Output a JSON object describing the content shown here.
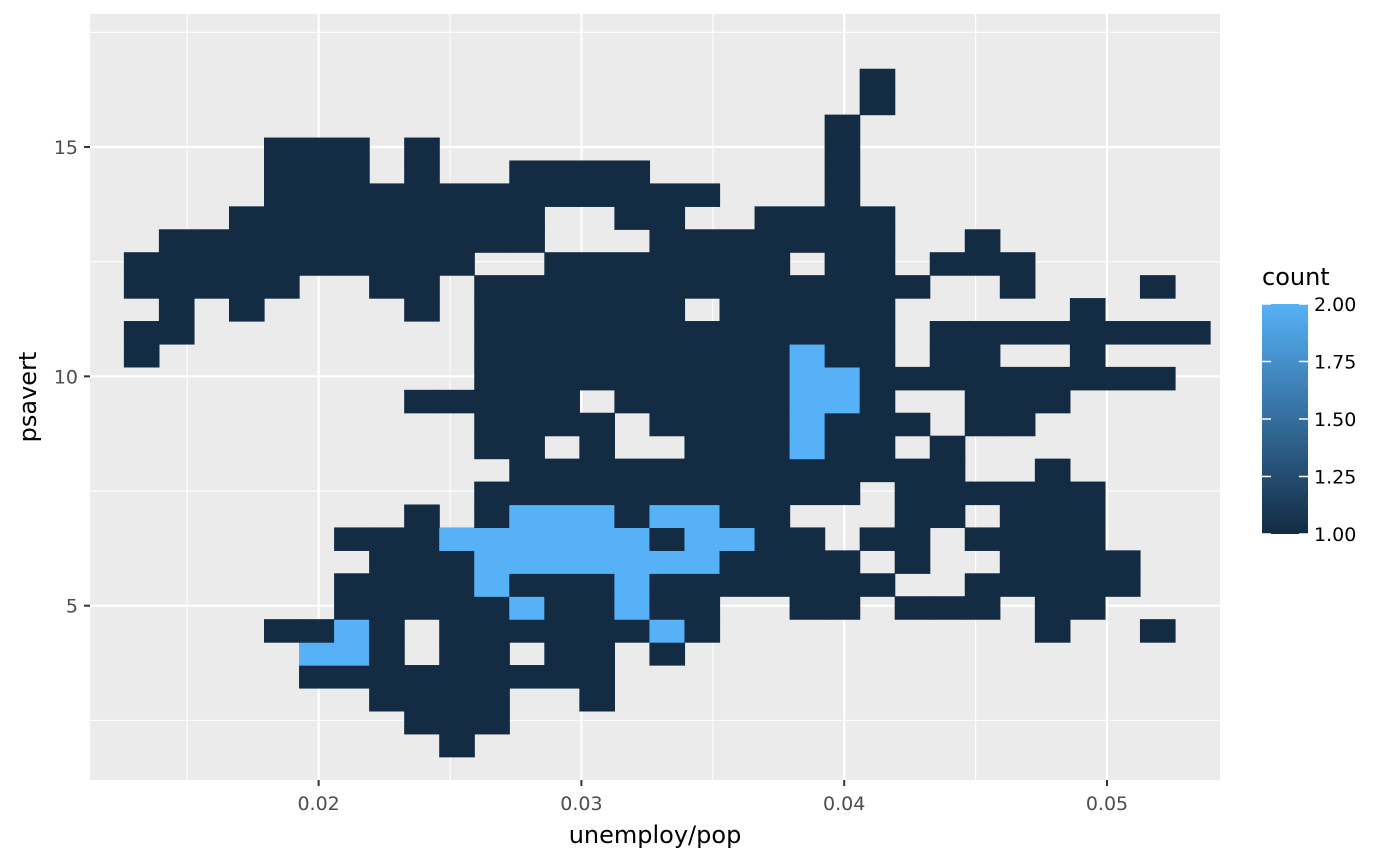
{
  "chart_data": {
    "type": "heatmap",
    "xlabel": "unemploy/pop",
    "ylabel": "psavert",
    "xlim": [
      0.0113,
      0.0543
    ],
    "ylim": [
      1.2,
      17.9
    ],
    "x_ticks": [
      0.02,
      0.03,
      0.04,
      0.05
    ],
    "x_tick_labels": [
      "0.02",
      "0.03",
      "0.04",
      "0.05"
    ],
    "y_ticks": [
      5,
      10,
      15
    ],
    "y_tick_labels": [
      "5",
      "10",
      "15"
    ],
    "grid": true,
    "panel_background": "#ebebeb",
    "grid_color": "#ffffff",
    "bin_width_x": 0.0013333,
    "bin_width_y": 0.5,
    "x_bin_origin": 0.0126,
    "y_bin_origin": 1.7,
    "legend": {
      "title": "count",
      "position": "right",
      "labels": [
        "2.00",
        "1.75",
        "1.50",
        "1.25",
        "1.00"
      ],
      "values": [
        2.0,
        1.75,
        1.5,
        1.25,
        1.0
      ],
      "low_color": "#132b43",
      "high_color": "#56b1f7",
      "range": [
        1,
        2
      ]
    },
    "count2_cells": [
      [
        5,
        4
      ],
      [
        6,
        4
      ],
      [
        6,
        5
      ],
      [
        11,
        6
      ],
      [
        15,
        5
      ],
      [
        14,
        6
      ],
      [
        14,
        7
      ],
      [
        10,
        7
      ],
      [
        10,
        8
      ],
      [
        11,
        8
      ],
      [
        12,
        8
      ],
      [
        13,
        8
      ],
      [
        14,
        8
      ],
      [
        15,
        8
      ],
      [
        16,
        8
      ],
      [
        9,
        9
      ],
      [
        10,
        9
      ],
      [
        11,
        9
      ],
      [
        12,
        9
      ],
      [
        13,
        9
      ],
      [
        14,
        9
      ],
      [
        16,
        9
      ],
      [
        17,
        9
      ],
      [
        11,
        10
      ],
      [
        12,
        10
      ],
      [
        13,
        10
      ],
      [
        15,
        10
      ],
      [
        16,
        10
      ],
      [
        19,
        13
      ],
      [
        19,
        14
      ],
      [
        19,
        15
      ],
      [
        20,
        15
      ],
      [
        20,
        16
      ],
      [
        19,
        16
      ],
      [
        19,
        17
      ]
    ],
    "rows": [
      {
        "y_bin": 0,
        "x_bins": [
          9
        ]
      },
      {
        "y_bin": 1,
        "x_bins": [
          8,
          9,
          10
        ]
      },
      {
        "y_bin": 2,
        "x_bins": [
          7,
          8,
          9,
          10,
          13
        ]
      },
      {
        "y_bin": 3,
        "x_bins": [
          5,
          6,
          7,
          8,
          9,
          10,
          11,
          12,
          13
        ]
      },
      {
        "y_bin": 4,
        "x_bins": [
          5,
          6,
          7,
          9,
          10,
          12,
          13,
          15
        ]
      },
      {
        "y_bin": 5,
        "x_bins": [
          4,
          5,
          6,
          7,
          9,
          10,
          11,
          12,
          13,
          14,
          15,
          16,
          26,
          29
        ]
      },
      {
        "y_bin": 6,
        "x_bins": [
          6,
          7,
          8,
          9,
          10,
          11,
          12,
          13,
          14,
          15,
          16,
          19,
          20,
          22,
          23,
          24,
          26,
          27
        ]
      },
      {
        "y_bin": 7,
        "x_bins": [
          6,
          7,
          8,
          9,
          10,
          11,
          12,
          13,
          14,
          15,
          16,
          17,
          18,
          19,
          20,
          21,
          24,
          25,
          26,
          27,
          28
        ]
      },
      {
        "y_bin": 8,
        "x_bins": [
          7,
          8,
          9,
          10,
          11,
          12,
          13,
          14,
          15,
          16,
          17,
          18,
          19,
          20,
          22,
          25,
          26,
          27,
          28
        ]
      },
      {
        "y_bin": 9,
        "x_bins": [
          6,
          7,
          8,
          9,
          10,
          11,
          12,
          13,
          14,
          15,
          16,
          17,
          18,
          19,
          21,
          22,
          24,
          25,
          26,
          27
        ]
      },
      {
        "y_bin": 10,
        "x_bins": [
          8,
          10,
          11,
          12,
          13,
          14,
          15,
          16,
          17,
          18,
          22,
          23,
          25,
          26,
          27
        ]
      },
      {
        "y_bin": 11,
        "x_bins": [
          10,
          11,
          12,
          13,
          14,
          15,
          16,
          17,
          18,
          19,
          20,
          22,
          23,
          24,
          25,
          26,
          27
        ]
      },
      {
        "y_bin": 12,
        "x_bins": [
          11,
          12,
          13,
          14,
          15,
          16,
          17,
          18,
          19,
          20,
          21,
          22,
          23,
          26
        ]
      },
      {
        "y_bin": 13,
        "x_bins": [
          10,
          11,
          13,
          16,
          17,
          18,
          19,
          20,
          21,
          23
        ]
      },
      {
        "y_bin": 14,
        "x_bins": [
          10,
          11,
          12,
          13,
          15,
          16,
          17,
          18,
          19,
          20,
          21,
          22,
          24,
          25
        ]
      },
      {
        "y_bin": 15,
        "x_bins": [
          8,
          9,
          10,
          11,
          12,
          14,
          15,
          16,
          17,
          18,
          19,
          20,
          21,
          24,
          25,
          26
        ]
      },
      {
        "y_bin": 16,
        "x_bins": [
          10,
          11,
          12,
          13,
          14,
          15,
          16,
          17,
          18,
          19,
          20,
          21,
          22,
          23,
          24,
          25,
          26,
          27,
          28,
          29
        ]
      },
      {
        "y_bin": 17,
        "x_bins": [
          0,
          10,
          11,
          12,
          13,
          14,
          15,
          16,
          17,
          18,
          19,
          20,
          21,
          23,
          24,
          27
        ]
      },
      {
        "y_bin": 18,
        "x_bins": [
          0,
          1,
          10,
          11,
          12,
          13,
          14,
          15,
          16,
          17,
          18,
          19,
          20,
          21,
          23,
          24,
          25,
          26,
          27,
          28,
          29,
          30
        ]
      },
      {
        "y_bin": 19,
        "x_bins": [
          1,
          3,
          8,
          10,
          11,
          12,
          13,
          14,
          15,
          17,
          18,
          19,
          20,
          21,
          27
        ]
      },
      {
        "y_bin": 20,
        "x_bins": [
          0,
          1,
          2,
          3,
          4,
          7,
          8,
          10,
          11,
          12,
          13,
          14,
          15,
          16,
          17,
          18,
          19,
          20,
          21,
          22,
          25,
          29
        ]
      },
      {
        "y_bin": 21,
        "x_bins": [
          0,
          1,
          2,
          3,
          4,
          5,
          6,
          7,
          8,
          9,
          12,
          13,
          14,
          15,
          16,
          17,
          18,
          20,
          21,
          23,
          24,
          25
        ]
      },
      {
        "y_bin": 22,
        "x_bins": [
          1,
          2,
          3,
          4,
          5,
          6,
          7,
          8,
          9,
          10,
          11,
          15,
          16,
          17,
          18,
          19,
          20,
          21,
          24
        ]
      },
      {
        "y_bin": 23,
        "x_bins": [
          3,
          4,
          5,
          6,
          7,
          8,
          9,
          10,
          11,
          14,
          15,
          18,
          19,
          20,
          21
        ]
      },
      {
        "y_bin": 24,
        "x_bins": [
          4,
          5,
          6,
          7,
          8,
          9,
          10,
          11,
          12,
          13,
          14,
          15,
          16,
          20
        ]
      },
      {
        "y_bin": 25,
        "x_bins": [
          4,
          5,
          6,
          8,
          11,
          12,
          13,
          14,
          20
        ]
      },
      {
        "y_bin": 26,
        "x_bins": [
          4,
          5,
          6,
          8,
          20
        ]
      },
      {
        "y_bin": 27,
        "x_bins": [
          20
        ]
      },
      {
        "y_bin": 28,
        "x_bins": [
          21
        ]
      },
      {
        "y_bin": 29,
        "x_bins": [
          21
        ]
      }
    ]
  }
}
